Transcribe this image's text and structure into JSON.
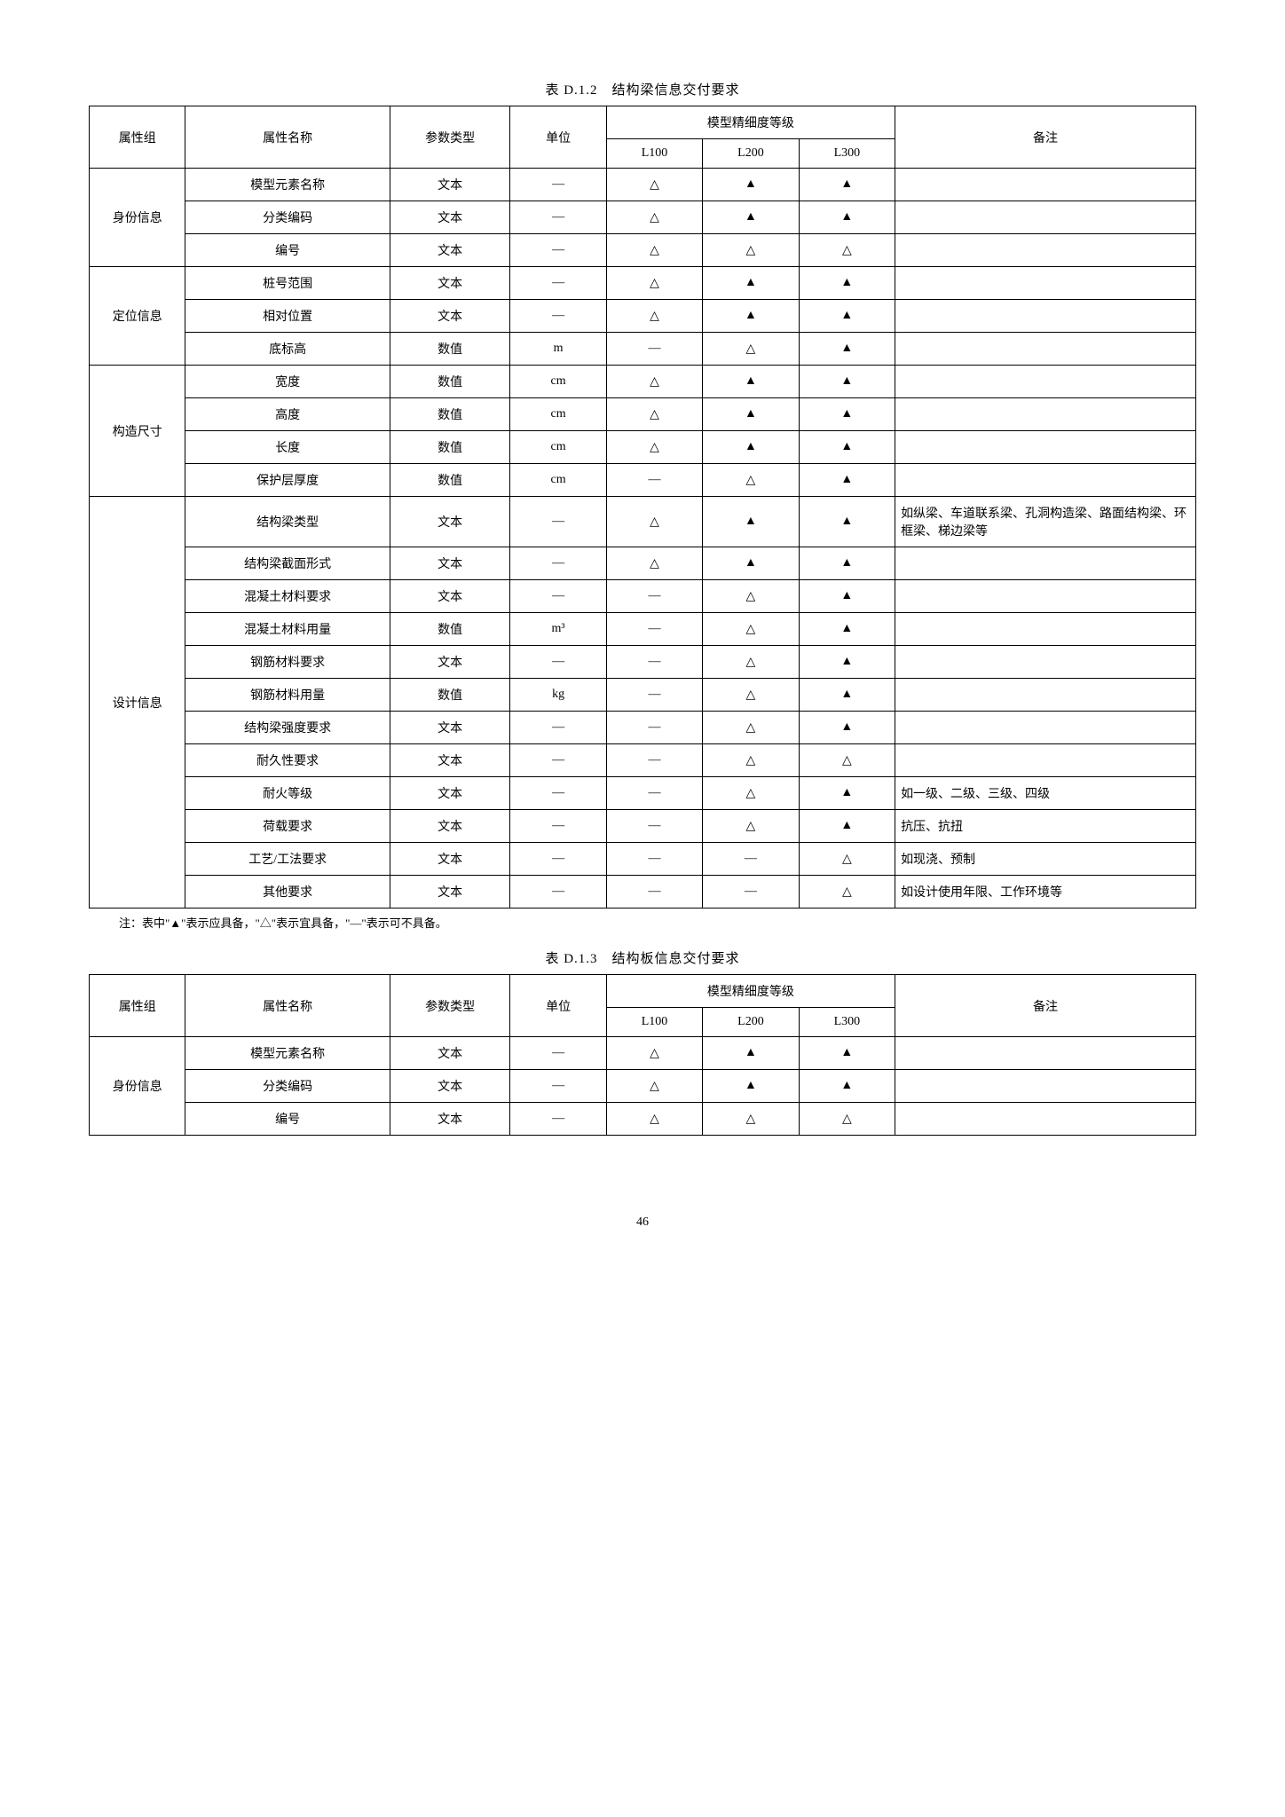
{
  "symbols": {
    "tri": "▲",
    "open": "△",
    "dash": "—"
  },
  "note": "注：表中\"▲\"表示应具备，\"△\"表示宜具备，\"—\"表示可不具备。",
  "page_number": "46",
  "tables": [
    {
      "caption": "表 D.1.2　结构梁信息交付要求",
      "header": {
        "group": "属性组",
        "name": "属性名称",
        "type": "参数类型",
        "unit": "单位",
        "level": "模型精细度等级",
        "levels": [
          "L100",
          "L200",
          "L300"
        ],
        "remark": "备注"
      },
      "groups": [
        {
          "label": "身份信息",
          "rows": [
            {
              "name": "模型元素名称",
              "type": "文本",
              "unit": "—",
              "L100": "△",
              "L200": "▲",
              "L300": "▲",
              "remark": ""
            },
            {
              "name": "分类编码",
              "type": "文本",
              "unit": "—",
              "L100": "△",
              "L200": "▲",
              "L300": "▲",
              "remark": ""
            },
            {
              "name": "编号",
              "type": "文本",
              "unit": "—",
              "L100": "△",
              "L200": "△",
              "L300": "△",
              "remark": ""
            }
          ]
        },
        {
          "label": "定位信息",
          "rows": [
            {
              "name": "桩号范围",
              "type": "文本",
              "unit": "—",
              "L100": "△",
              "L200": "▲",
              "L300": "▲",
              "remark": ""
            },
            {
              "name": "相对位置",
              "type": "文本",
              "unit": "—",
              "L100": "△",
              "L200": "▲",
              "L300": "▲",
              "remark": ""
            },
            {
              "name": "底标高",
              "type": "数值",
              "unit": "m",
              "L100": "—",
              "L200": "△",
              "L300": "▲",
              "remark": ""
            }
          ]
        },
        {
          "label": "构造尺寸",
          "rows": [
            {
              "name": "宽度",
              "type": "数值",
              "unit": "cm",
              "L100": "△",
              "L200": "▲",
              "L300": "▲",
              "remark": ""
            },
            {
              "name": "高度",
              "type": "数值",
              "unit": "cm",
              "L100": "△",
              "L200": "▲",
              "L300": "▲",
              "remark": ""
            },
            {
              "name": "长度",
              "type": "数值",
              "unit": "cm",
              "L100": "△",
              "L200": "▲",
              "L300": "▲",
              "remark": ""
            },
            {
              "name": "保护层厚度",
              "type": "数值",
              "unit": "cm",
              "L100": "—",
              "L200": "△",
              "L300": "▲",
              "remark": ""
            }
          ]
        },
        {
          "label": "设计信息",
          "rows": [
            {
              "name": "结构梁类型",
              "type": "文本",
              "unit": "—",
              "L100": "△",
              "L200": "▲",
              "L300": "▲",
              "remark": "如纵梁、车道联系梁、孔洞构造梁、路面结构梁、环框梁、梯边梁等"
            },
            {
              "name": "结构梁截面形式",
              "type": "文本",
              "unit": "—",
              "L100": "△",
              "L200": "▲",
              "L300": "▲",
              "remark": ""
            },
            {
              "name": "混凝土材料要求",
              "type": "文本",
              "unit": "—",
              "L100": "—",
              "L200": "△",
              "L300": "▲",
              "remark": ""
            },
            {
              "name": "混凝土材料用量",
              "type": "数值",
              "unit": "m³",
              "L100": "—",
              "L200": "△",
              "L300": "▲",
              "remark": ""
            },
            {
              "name": "钢筋材料要求",
              "type": "文本",
              "unit": "—",
              "L100": "—",
              "L200": "△",
              "L300": "▲",
              "remark": ""
            },
            {
              "name": "钢筋材料用量",
              "type": "数值",
              "unit": "kg",
              "L100": "—",
              "L200": "△",
              "L300": "▲",
              "remark": ""
            },
            {
              "name": "结构梁强度要求",
              "type": "文本",
              "unit": "—",
              "L100": "—",
              "L200": "△",
              "L300": "▲",
              "remark": ""
            },
            {
              "name": "耐久性要求",
              "type": "文本",
              "unit": "—",
              "L100": "—",
              "L200": "△",
              "L300": "△",
              "remark": ""
            },
            {
              "name": "耐火等级",
              "type": "文本",
              "unit": "—",
              "L100": "—",
              "L200": "△",
              "L300": "▲",
              "remark": "如一级、二级、三级、四级"
            },
            {
              "name": "荷载要求",
              "type": "文本",
              "unit": "—",
              "L100": "—",
              "L200": "△",
              "L300": "▲",
              "remark": "抗压、抗扭"
            },
            {
              "name": "工艺/工法要求",
              "type": "文本",
              "unit": "—",
              "L100": "—",
              "L200": "—",
              "L300": "△",
              "remark": "如现浇、预制"
            },
            {
              "name": "其他要求",
              "type": "文本",
              "unit": "—",
              "L100": "—",
              "L200": "—",
              "L300": "△",
              "remark": "如设计使用年限、工作环境等"
            }
          ]
        }
      ]
    },
    {
      "caption": "表 D.1.3　结构板信息交付要求",
      "header": {
        "group": "属性组",
        "name": "属性名称",
        "type": "参数类型",
        "unit": "单位",
        "level": "模型精细度等级",
        "levels": [
          "L100",
          "L200",
          "L300"
        ],
        "remark": "备注"
      },
      "groups": [
        {
          "label": "身份信息",
          "rows": [
            {
              "name": "模型元素名称",
              "type": "文本",
              "unit": "—",
              "L100": "△",
              "L200": "▲",
              "L300": "▲",
              "remark": ""
            },
            {
              "name": "分类编码",
              "type": "文本",
              "unit": "—",
              "L100": "△",
              "L200": "▲",
              "L300": "▲",
              "remark": ""
            },
            {
              "name": "编号",
              "type": "文本",
              "unit": "—",
              "L100": "△",
              "L200": "△",
              "L300": "△",
              "remark": ""
            }
          ]
        }
      ]
    }
  ]
}
